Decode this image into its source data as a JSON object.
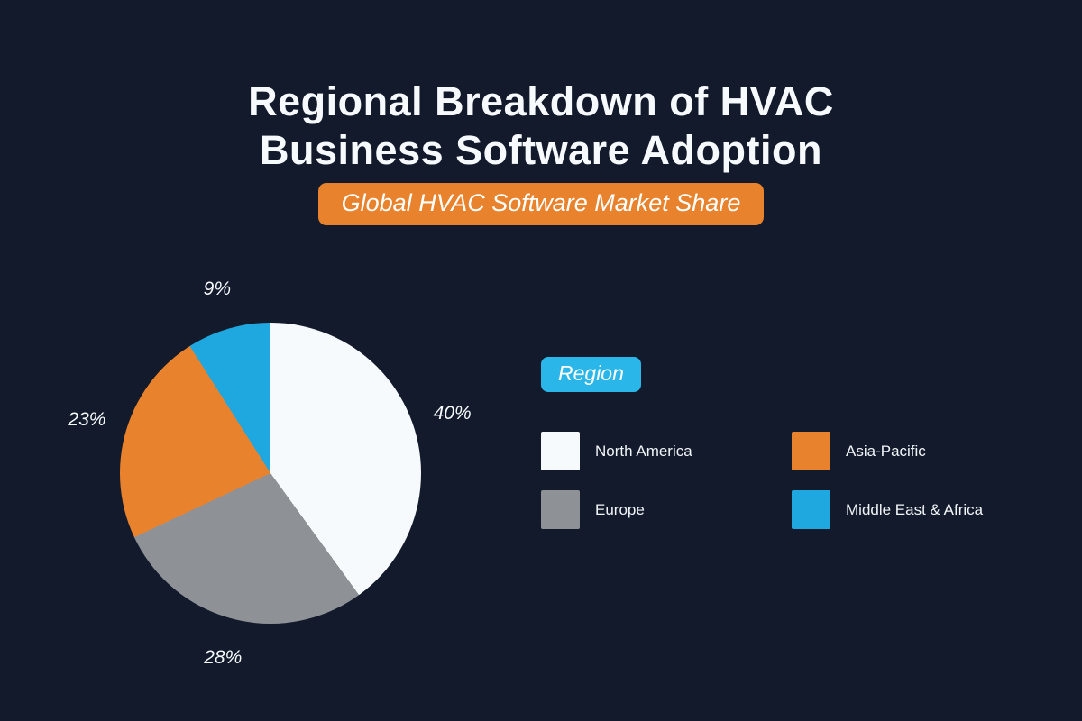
{
  "page": {
    "background": "#121a2c",
    "title": "Regional Breakdown of HVAC Business Software Adoption",
    "badge": "Global HVAC Software Market Share",
    "badge_color": "#e8822d"
  },
  "legend": {
    "title": "Region",
    "title_color": "#2ab6e8",
    "items": [
      {
        "label": "North America",
        "color": "#f7fafc"
      },
      {
        "label": "Asia-Pacific",
        "color": "#e8822d"
      },
      {
        "label": "Europe",
        "color": "#8e9296"
      },
      {
        "label": "Middle East & Africa",
        "color": "#1fa8e0"
      }
    ]
  },
  "chart_data": {
    "type": "pie",
    "title": "Global HVAC Software Market Share",
    "categories": [
      "North America",
      "Europe",
      "Asia-Pacific",
      "Middle East & Africa"
    ],
    "values": [
      40,
      28,
      23,
      9
    ],
    "labels": [
      "40%",
      "28%",
      "23%",
      "9%"
    ],
    "colors": [
      "#f7fafc",
      "#8e9296",
      "#e8822d",
      "#1fa8e0"
    ],
    "start_angle_deg": 0,
    "direction": "clockwise",
    "legend_position": "right"
  }
}
